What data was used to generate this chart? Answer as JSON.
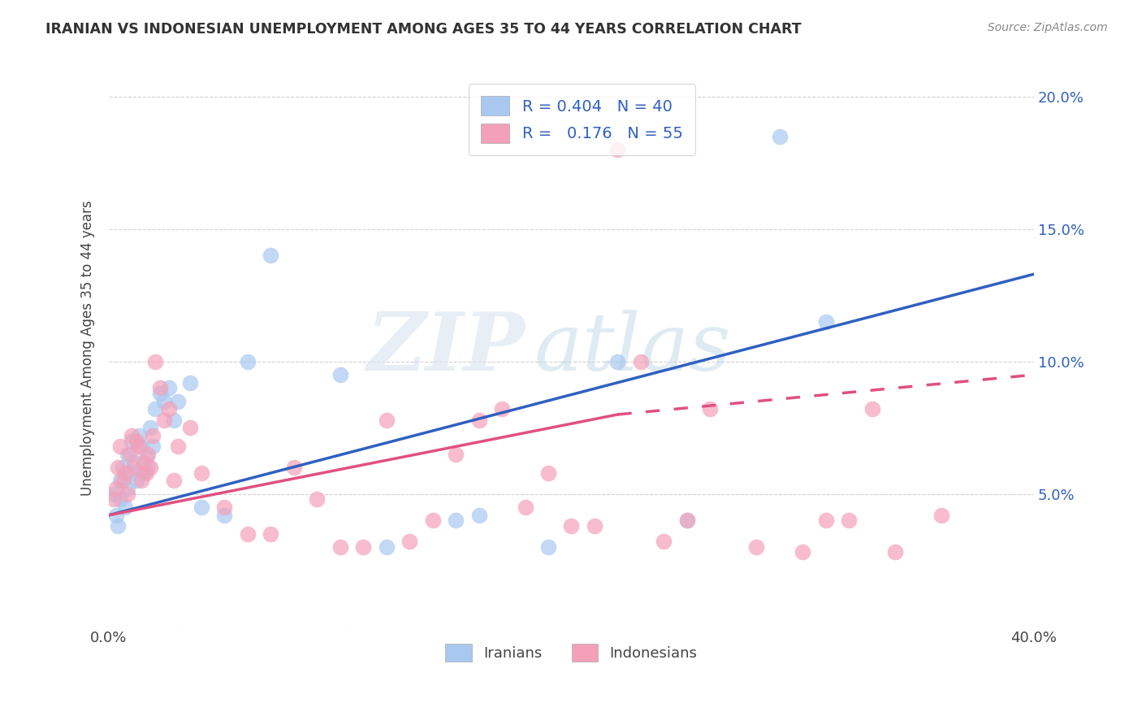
{
  "title": "IRANIAN VS INDONESIAN UNEMPLOYMENT AMONG AGES 35 TO 44 YEARS CORRELATION CHART",
  "source": "Source: ZipAtlas.com",
  "ylabel": "Unemployment Among Ages 35 to 44 years",
  "xlim": [
    0.0,
    0.4
  ],
  "ylim": [
    0.0,
    0.21
  ],
  "xticks": [
    0.0,
    0.05,
    0.1,
    0.15,
    0.2,
    0.25,
    0.3,
    0.35,
    0.4
  ],
  "yticks": [
    0.0,
    0.05,
    0.1,
    0.15,
    0.2
  ],
  "legend_r_iranian": "0.404",
  "legend_n_iranian": "40",
  "legend_r_indonesian": "0.176",
  "legend_n_indonesian": "55",
  "iranian_color": "#a8c8f0",
  "indonesian_color": "#f4a0b8",
  "trendline_iranian_color": "#3060c0",
  "trendline_indonesian_color": "#e05080",
  "watermark_zip": "ZIP",
  "watermark_atlas": "atlas",
  "iranian_x": [
    0.002,
    0.003,
    0.004,
    0.005,
    0.005,
    0.006,
    0.007,
    0.008,
    0.008,
    0.009,
    0.01,
    0.011,
    0.012,
    0.013,
    0.014,
    0.015,
    0.016,
    0.017,
    0.018,
    0.019,
    0.02,
    0.022,
    0.024,
    0.026,
    0.028,
    0.03,
    0.035,
    0.04,
    0.05,
    0.06,
    0.07,
    0.1,
    0.12,
    0.15,
    0.16,
    0.19,
    0.22,
    0.25,
    0.29,
    0.31
  ],
  "iranian_y": [
    0.05,
    0.042,
    0.038,
    0.055,
    0.048,
    0.06,
    0.045,
    0.052,
    0.065,
    0.058,
    0.07,
    0.062,
    0.055,
    0.072,
    0.068,
    0.058,
    0.064,
    0.06,
    0.075,
    0.068,
    0.082,
    0.088,
    0.085,
    0.09,
    0.078,
    0.085,
    0.092,
    0.045,
    0.042,
    0.1,
    0.14,
    0.095,
    0.03,
    0.04,
    0.042,
    0.03,
    0.1,
    0.04,
    0.185,
    0.115
  ],
  "indonesian_x": [
    0.002,
    0.003,
    0.004,
    0.005,
    0.006,
    0.007,
    0.008,
    0.009,
    0.01,
    0.011,
    0.012,
    0.013,
    0.014,
    0.015,
    0.016,
    0.017,
    0.018,
    0.019,
    0.02,
    0.022,
    0.024,
    0.026,
    0.028,
    0.03,
    0.035,
    0.04,
    0.05,
    0.06,
    0.07,
    0.08,
    0.09,
    0.1,
    0.11,
    0.12,
    0.13,
    0.14,
    0.15,
    0.16,
    0.17,
    0.18,
    0.19,
    0.2,
    0.21,
    0.22,
    0.23,
    0.24,
    0.25,
    0.26,
    0.28,
    0.3,
    0.31,
    0.32,
    0.33,
    0.34,
    0.36
  ],
  "indonesian_y": [
    0.048,
    0.052,
    0.06,
    0.068,
    0.055,
    0.058,
    0.05,
    0.065,
    0.072,
    0.06,
    0.07,
    0.068,
    0.055,
    0.062,
    0.058,
    0.065,
    0.06,
    0.072,
    0.1,
    0.09,
    0.078,
    0.082,
    0.055,
    0.068,
    0.075,
    0.058,
    0.045,
    0.035,
    0.035,
    0.06,
    0.048,
    0.03,
    0.03,
    0.078,
    0.032,
    0.04,
    0.065,
    0.078,
    0.082,
    0.045,
    0.058,
    0.038,
    0.038,
    0.18,
    0.1,
    0.032,
    0.04,
    0.082,
    0.03,
    0.028,
    0.04,
    0.04,
    0.082,
    0.028,
    0.042
  ],
  "trendline_iranian_x0": 0.0,
  "trendline_iranian_x1": 0.4,
  "trendline_iranian_y0": 0.042,
  "trendline_iranian_y1": 0.133,
  "trendline_indo_solid_x0": 0.0,
  "trendline_indo_solid_x1": 0.22,
  "trendline_indo_solid_y0": 0.042,
  "trendline_indo_solid_y1": 0.08,
  "trendline_indo_dash_x0": 0.22,
  "trendline_indo_dash_x1": 0.4,
  "trendline_indo_dash_y0": 0.08,
  "trendline_indo_dash_y1": 0.095
}
